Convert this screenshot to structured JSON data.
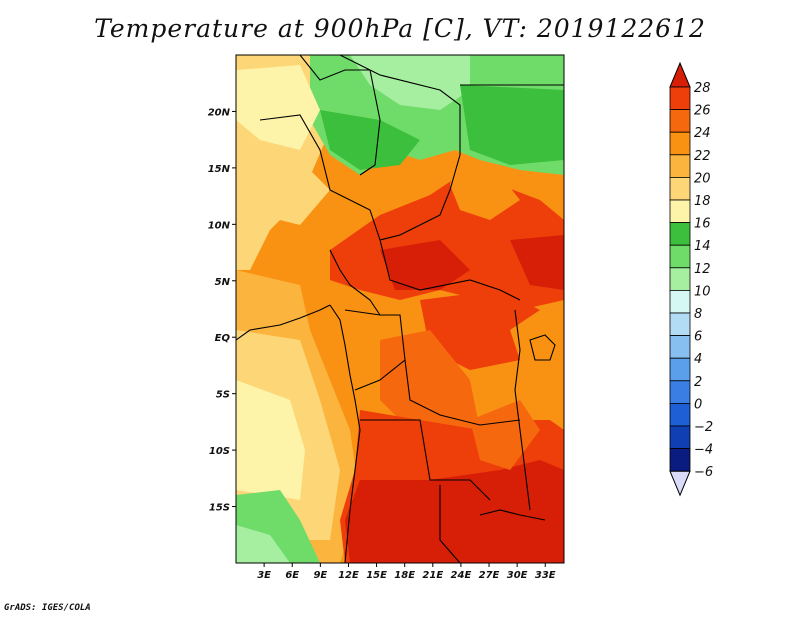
{
  "title": "Temperature at 900hPa [C], VT: 2019122612",
  "footer": "GrADS: IGES/COLA",
  "map": {
    "lon_range": [
      0,
      35
    ],
    "lat_range": [
      -20,
      25
    ],
    "lat_ticks": [
      {
        "value": 20,
        "label": "20N"
      },
      {
        "value": 15,
        "label": "15N"
      },
      {
        "value": 10,
        "label": "10N"
      },
      {
        "value": 5,
        "label": "5N"
      },
      {
        "value": 0,
        "label": "EQ"
      },
      {
        "value": -5,
        "label": "5S"
      },
      {
        "value": -10,
        "label": "10S"
      },
      {
        "value": -15,
        "label": "15S"
      }
    ],
    "lon_ticks": [
      {
        "value": 3,
        "label": "3E"
      },
      {
        "value": 6,
        "label": "6E"
      },
      {
        "value": 9,
        "label": "9E"
      },
      {
        "value": 12,
        "label": "12E"
      },
      {
        "value": 15,
        "label": "15E"
      },
      {
        "value": 18,
        "label": "18E"
      },
      {
        "value": 21,
        "label": "21E"
      },
      {
        "value": 24,
        "label": "24E"
      },
      {
        "value": 27,
        "label": "27E"
      },
      {
        "value": 30,
        "label": "30E"
      },
      {
        "value": 33,
        "label": "33E"
      }
    ]
  },
  "colorbar": {
    "labels": [
      "28",
      "26",
      "24",
      "22",
      "20",
      "18",
      "16",
      "14",
      "12",
      "10",
      "8",
      "6",
      "4",
      "2",
      "0",
      "−2",
      "−4",
      "−6"
    ],
    "colors": [
      "#d61f06",
      "#ee3e0a",
      "#f6680e",
      "#f99213",
      "#fbb43e",
      "#fcd677",
      "#fdf3a9",
      "#3cbf3c",
      "#6fdc6a",
      "#a6efa0",
      "#d6f8f4",
      "#b2dcf5",
      "#86bff0",
      "#5b9eea",
      "#3a7ee4",
      "#1f5fd6",
      "#0f3fb2",
      "#0a1c80"
    ],
    "cap_bottom_color": "#d8dcf8"
  },
  "temperature_regions": [
    {
      "name": "sahel-north-green",
      "color": "#6fdc6a"
    },
    {
      "name": "ethiopia-green",
      "color": "#3cbf3c"
    },
    {
      "name": "west-coast-warm",
      "color": "#fcd677"
    },
    {
      "name": "central-hot",
      "color": "#ee3e0a"
    },
    {
      "name": "southern-hottest",
      "color": "#d61f06"
    }
  ]
}
